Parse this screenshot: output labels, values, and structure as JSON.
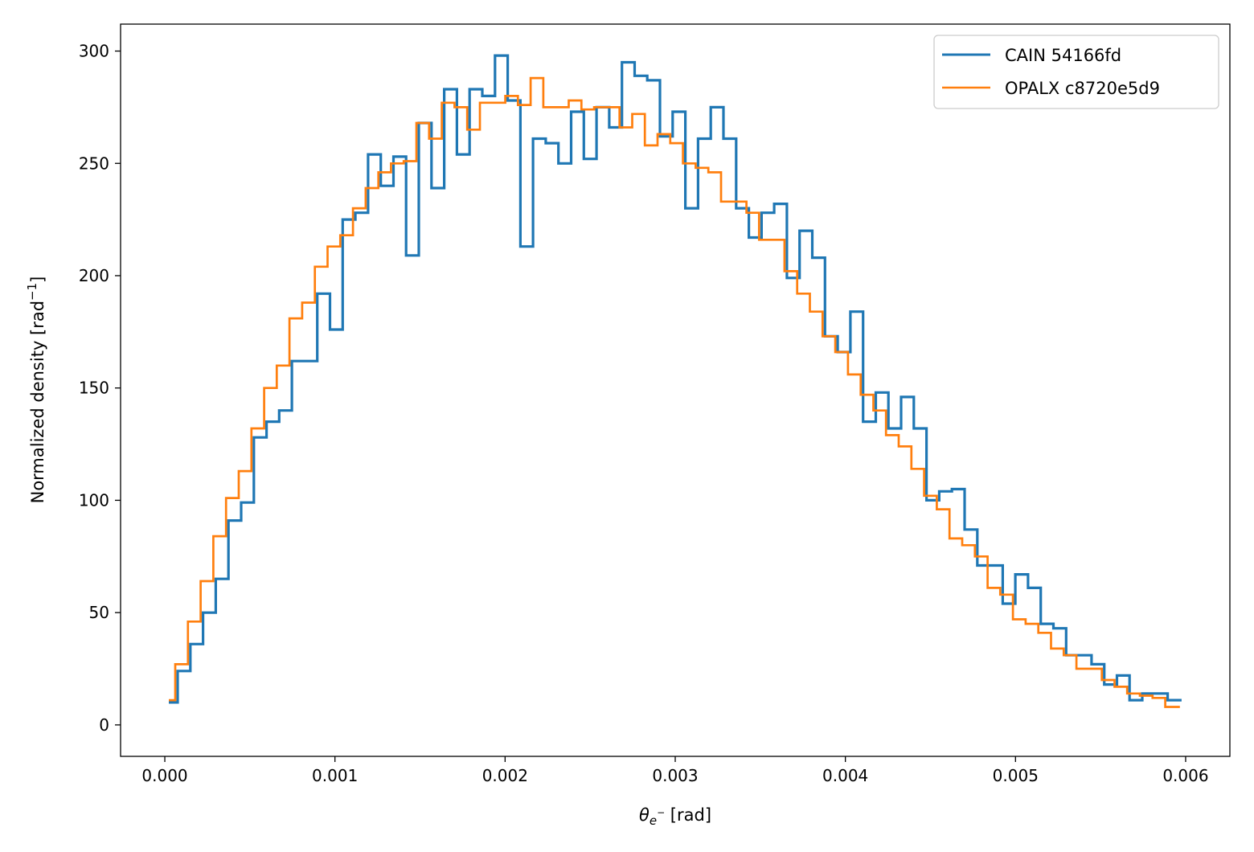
{
  "chart_data": {
    "type": "histogram-step",
    "xlabel_main": "θ",
    "xlabel_sub": "e",
    "xlabel_sup": "−",
    "xlabel_unit": " [rad]",
    "ylabel": "Normalized density [rad",
    "ylabel_sup": "−1",
    "ylabel_end": "]",
    "xlim": [
      -0.00026,
      0.00626
    ],
    "ylim": [
      -14,
      312
    ],
    "xticks": [
      "0.000",
      "0.001",
      "0.002",
      "0.003",
      "0.004",
      "0.005",
      "0.006"
    ],
    "xtick_values": [
      0,
      0.001,
      0.002,
      0.003,
      0.004,
      0.005,
      0.006
    ],
    "yticks": [
      "0",
      "50",
      "100",
      "150",
      "200",
      "250",
      "300"
    ],
    "ytick_values": [
      0,
      50,
      100,
      150,
      200,
      250,
      300
    ],
    "grid": false,
    "legend_position": "top-right",
    "series": [
      {
        "name": "CAIN 54166fd",
        "color": "#1f77b4",
        "x_min": 2.36e-05,
        "first_edge": 7.56e-05,
        "bin_width": 7.46e-05,
        "x_max": 0.005976,
        "values": [
          10,
          24,
          36,
          50,
          65,
          91,
          99,
          128,
          135,
          140,
          162,
          162,
          192,
          176,
          225,
          228,
          254,
          240,
          253,
          209,
          268,
          239,
          283,
          254,
          283,
          280,
          298,
          278,
          213,
          261,
          259,
          250,
          273,
          252,
          275,
          266,
          295,
          289,
          287,
          262,
          273,
          230,
          261,
          275,
          261,
          230,
          217,
          228,
          232,
          199,
          220,
          208,
          173,
          166,
          184,
          135,
          148,
          132,
          146,
          132,
          100,
          104,
          105,
          87,
          71,
          71,
          54,
          67,
          61,
          45,
          43,
          31,
          31,
          27,
          18,
          22,
          11,
          14,
          14,
          11
        ]
      },
      {
        "name": "OPALX c8720e5d9",
        "color": "#ff7f0e",
        "x_min": 2.36e-05,
        "first_edge": 6.14e-05,
        "bin_width": 7.46e-05,
        "x_max": 0.005966,
        "values": [
          11,
          27,
          46,
          64,
          84,
          101,
          113,
          132,
          150,
          160,
          181,
          188,
          204,
          213,
          218,
          230,
          239,
          246,
          250,
          251,
          268,
          261,
          277,
          275,
          265,
          277,
          277,
          280,
          276,
          288,
          275,
          275,
          278,
          274,
          275,
          275,
          266,
          272,
          258,
          263,
          259,
          250,
          248,
          246,
          233,
          233,
          228,
          216,
          216,
          202,
          192,
          184,
          173,
          166,
          156,
          147,
          140,
          129,
          124,
          114,
          102,
          96,
          83,
          80,
          75,
          61,
          58,
          47,
          45,
          41,
          34,
          31,
          25,
          25,
          20,
          17,
          14,
          13,
          12,
          8
        ]
      }
    ]
  }
}
